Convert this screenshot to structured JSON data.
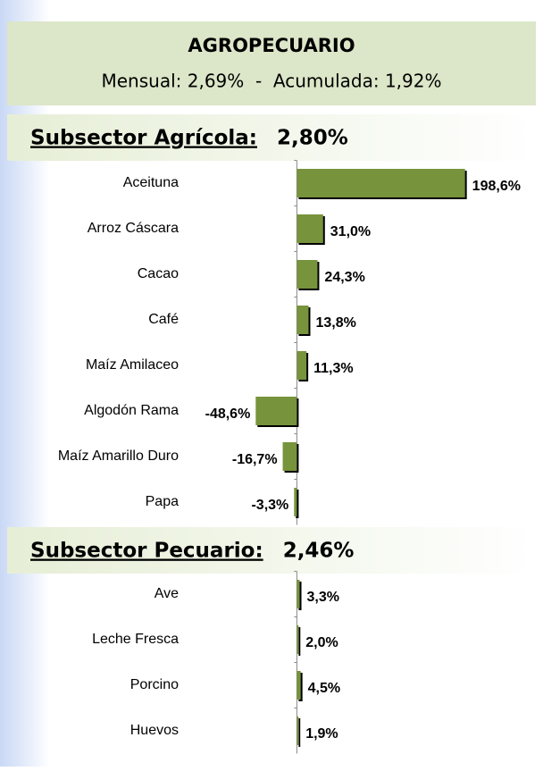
{
  "header": {
    "title": "AGROPECUARIO",
    "subtitle": "Mensual: 2,69%  -  Acumulada: 1,92%"
  },
  "chart_data": [
    {
      "type": "bar",
      "orientation": "horizontal",
      "title": "Subsector Agrícola:",
      "title_value": "2,80%",
      "categories": [
        "Aceituna",
        "Arroz Cáscara",
        "Cacao",
        "Café",
        "Maíz Amilaceo",
        "Algodón Rama",
        "Maíz Amarillo Duro",
        "Papa"
      ],
      "values": [
        198.6,
        31.0,
        24.3,
        13.8,
        11.3,
        -48.6,
        -16.7,
        -3.3
      ],
      "value_labels": [
        "198,6%",
        "31,0%",
        "24,3%",
        "13,8%",
        "11,3%",
        "-48,6%",
        "-16,7%",
        "-3,3%"
      ],
      "color": "#77933c",
      "xlim": [
        -50,
        200
      ]
    },
    {
      "type": "bar",
      "orientation": "horizontal",
      "title": "Subsector Pecuario:",
      "title_value": "2,46%",
      "categories": [
        "Ave",
        "Leche Fresca",
        "Porcino",
        "Huevos"
      ],
      "values": [
        3.3,
        2.0,
        4.5,
        1.9
      ],
      "value_labels": [
        "3,3%",
        "2,0%",
        "4,5%",
        "1,9%"
      ],
      "color": "#77933c",
      "xlim": [
        -50,
        200
      ]
    }
  ]
}
